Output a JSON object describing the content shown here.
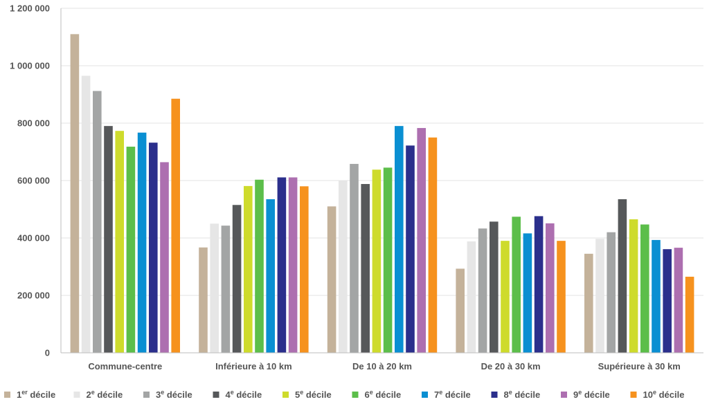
{
  "chart_data": {
    "type": "bar",
    "title": "",
    "xlabel": "",
    "ylabel": "",
    "ylim": [
      0,
      1200000
    ],
    "y_ticks": [
      0,
      200000,
      400000,
      600000,
      800000,
      1000000,
      1200000
    ],
    "y_tick_labels": [
      "0",
      "200 000",
      "400 000",
      "600 000",
      "800 000",
      "1 000 000",
      "1 200 000"
    ],
    "grid": true,
    "legend_position": "bottom",
    "categories": [
      "Commune-centre",
      "Inférieure à 10 km",
      "De 10 à 20 km",
      "De 20 à 30 km",
      "Supérieure à 30 km"
    ],
    "series": [
      {
        "name": "1er décile",
        "legend_main": "1",
        "legend_sup": "er",
        "legend_rest": " décile",
        "color": "#C4B29A",
        "values": [
          1110000,
          367000,
          510000,
          293000,
          345000
        ]
      },
      {
        "name": "2e décile",
        "legend_main": "2",
        "legend_sup": "e",
        "legend_rest": " décile",
        "color": "#E6E6E6",
        "values": [
          965000,
          450000,
          600000,
          388000,
          397000
        ]
      },
      {
        "name": "3e décile",
        "legend_main": "3",
        "legend_sup": "e",
        "legend_rest": " décile",
        "color": "#A3A5A5",
        "values": [
          912000,
          443000,
          658000,
          433000,
          420000
        ]
      },
      {
        "name": "4e décile",
        "legend_main": "4",
        "legend_sup": "e",
        "legend_rest": " décile",
        "color": "#56585A",
        "values": [
          790000,
          515000,
          588000,
          457000,
          535000
        ]
      },
      {
        "name": "5e décile",
        "legend_main": "5",
        "legend_sup": "e",
        "legend_rest": " décile",
        "color": "#CEDB2C",
        "values": [
          773000,
          581000,
          638000,
          390000,
          465000
        ]
      },
      {
        "name": "6e décile",
        "legend_main": "6",
        "legend_sup": "e",
        "legend_rest": " décile",
        "color": "#5CBE4A",
        "values": [
          718000,
          603000,
          645000,
          474000,
          447000
        ]
      },
      {
        "name": "7e décile",
        "legend_main": "7",
        "legend_sup": "e",
        "legend_rest": " décile",
        "color": "#0A8FD2",
        "values": [
          767000,
          535000,
          790000,
          416000,
          393000
        ]
      },
      {
        "name": "8e décile",
        "legend_main": "8",
        "legend_sup": "e",
        "legend_rest": " décile",
        "color": "#2B2F8C",
        "values": [
          732000,
          611000,
          722000,
          476000,
          361000
        ]
      },
      {
        "name": "9e décile",
        "legend_main": "9",
        "legend_sup": "e",
        "legend_rest": " décile",
        "color": "#AD6FB0",
        "values": [
          664000,
          611000,
          783000,
          451000,
          366000
        ]
      },
      {
        "name": "10e décile",
        "legend_main": "10",
        "legend_sup": "e",
        "legend_rest": " décile",
        "color": "#F6921E",
        "values": [
          885000,
          580000,
          750000,
          390000,
          265000
        ]
      }
    ]
  }
}
